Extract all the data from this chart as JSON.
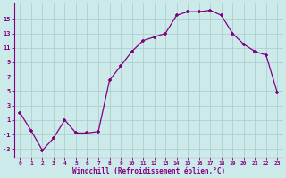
{
  "x": [
    0,
    1,
    2,
    3,
    4,
    5,
    6,
    7,
    8,
    9,
    10,
    11,
    12,
    13,
    14,
    15,
    16,
    17,
    18,
    19,
    20,
    21,
    22,
    23
  ],
  "y": [
    2,
    -0.5,
    -3.2,
    -1.5,
    1,
    -0.8,
    -0.8,
    -0.6,
    6.5,
    8.5,
    10.5,
    12,
    12.5,
    13,
    15.5,
    16,
    16,
    16.2,
    15.5,
    13,
    11.5,
    10.5,
    10,
    4.8
  ],
  "line_color": "#800080",
  "marker": "+",
  "marker_color": "#800080",
  "bg_color": "#cdeaea",
  "grid_color": "#aecece",
  "xlabel": "Windchill (Refroidissement éolien,°C)",
  "xlabel_color": "#800080",
  "ylabel_ticks": [
    -3,
    -1,
    1,
    3,
    5,
    7,
    9,
    11,
    13,
    15
  ],
  "xlim": [
    -0.5,
    23.5
  ],
  "ylim": [
    -4.2,
    17.2
  ],
  "xtick_labels": [
    "0",
    "1",
    "2",
    "3",
    "4",
    "5",
    "6",
    "7",
    "8",
    "9",
    "10",
    "11",
    "12",
    "13",
    "14",
    "15",
    "16",
    "17",
    "18",
    "19",
    "20",
    "21",
    "22",
    "23"
  ],
  "tick_color": "#800080",
  "spine_color": "#800080",
  "axis_bottom_color": "#800080"
}
